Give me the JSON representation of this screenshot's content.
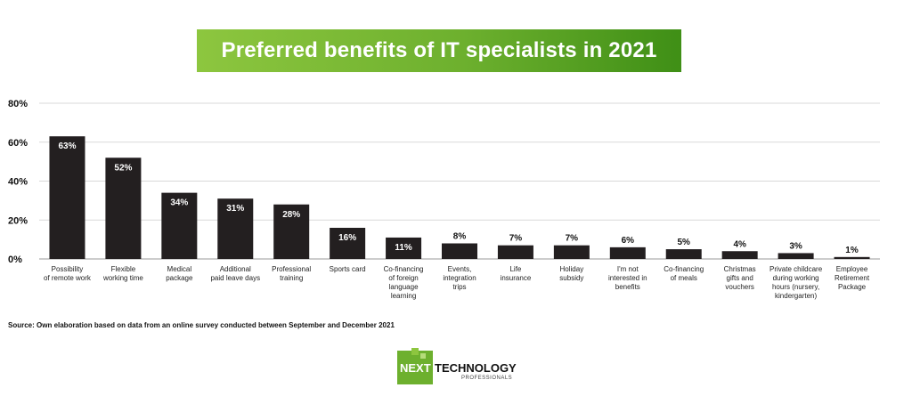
{
  "chart_data": {
    "type": "bar",
    "title": "Preferred benefits of IT specialists in 2021",
    "xlabel": "",
    "ylabel": "",
    "ylim": [
      0,
      80
    ],
    "yticks": [
      "0%",
      "20%",
      "40%",
      "60%",
      "80%"
    ],
    "grid": true,
    "categories": [
      [
        "Possibility",
        "of remote work"
      ],
      [
        "Flexible",
        "working time"
      ],
      [
        "Medical",
        "package"
      ],
      [
        "Additional",
        "paid leave days"
      ],
      [
        "Professional",
        "training"
      ],
      [
        "Sports card"
      ],
      [
        "Co-financing",
        "of foreign",
        "language",
        "learning"
      ],
      [
        "Events,",
        "integration",
        "trips"
      ],
      [
        "Life",
        "insurance"
      ],
      [
        "Holiday",
        "subsidy"
      ],
      [
        "I'm not",
        "interested in",
        "benefits"
      ],
      [
        "Co-financing",
        "of meals"
      ],
      [
        "Christmas",
        "gifts and",
        "vouchers"
      ],
      [
        "Private childcare",
        "during working",
        "hours (nursery,",
        "kindergarten)"
      ],
      [
        "Employee",
        "Retirement",
        "Package"
      ]
    ],
    "values": [
      63,
      52,
      34,
      31,
      28,
      16,
      11,
      8,
      7,
      7,
      6,
      5,
      4,
      3,
      1
    ],
    "value_labels": [
      "63%",
      "52%",
      "34%",
      "31%",
      "28%",
      "16%",
      "11%",
      "8%",
      "7%",
      "7%",
      "6%",
      "5%",
      "4%",
      "3%",
      "1%"
    ],
    "bar_color": "#231f20",
    "source": "Source: Own elaboration based on data from an online survey conducted between September and December 2021"
  },
  "logo": {
    "name": "NEXT TECHNOLOGY",
    "subtitle": "PROFESSIONALS",
    "color": "#6db02e"
  }
}
